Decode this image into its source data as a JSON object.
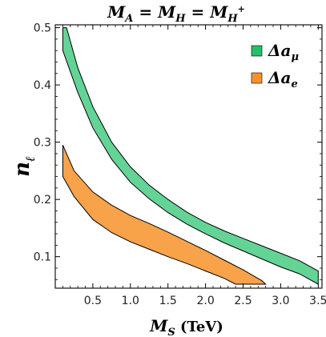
{
  "chart_data": {
    "type": "area",
    "title": {
      "main": "M",
      "a_sub": "A",
      "eq1": " = ",
      "h_main": "M",
      "h_sub": "H",
      "eq2": " = ",
      "hp_main": "M",
      "hp_sub": "H",
      "hp_sup": "+"
    },
    "xlabel": {
      "main": "M",
      "sub": "S",
      "unit": " (TeV)"
    },
    "ylabel": {
      "main": "n",
      "sub": "ℓ"
    },
    "xlim": [
      0,
      3.55
    ],
    "ylim": [
      0.045,
      0.505
    ],
    "x_ticks": [
      0.5,
      1.0,
      1.5,
      2.0,
      2.5,
      3.0,
      3.5
    ],
    "x_tick_labels": [
      "0.5",
      "1.0",
      "1.5",
      "2.0",
      "2.5",
      "3.0",
      "3.5"
    ],
    "y_ticks": [
      0.1,
      0.2,
      0.3,
      0.4,
      0.5
    ],
    "y_tick_labels": [
      "0.1",
      "0.2",
      "0.3",
      "0.4",
      "0.5"
    ],
    "legend_position": "top-right",
    "series": [
      {
        "name": "Δa",
        "name_sub": "μ",
        "color": "#22c06a",
        "upper": {
          "x": [
            0.1,
            0.15,
            0.3,
            0.5,
            0.75,
            1.0,
            1.25,
            1.5,
            1.75,
            2.0,
            2.25,
            2.5,
            2.75,
            3.0,
            3.25,
            3.5
          ],
          "y": [
            0.5,
            0.5,
            0.43,
            0.362,
            0.3,
            0.257,
            0.225,
            0.2,
            0.178,
            0.16,
            0.145,
            0.132,
            0.119,
            0.106,
            0.093,
            0.075
          ]
        },
        "lower": {
          "x": [
            0.1,
            0.3,
            0.5,
            0.75,
            1.0,
            1.25,
            1.5,
            1.75,
            2.0,
            2.25,
            2.5,
            2.75,
            3.0,
            3.25,
            3.5
          ],
          "y": [
            0.46,
            0.387,
            0.325,
            0.27,
            0.23,
            0.201,
            0.177,
            0.157,
            0.14,
            0.124,
            0.11,
            0.096,
            0.082,
            0.07,
            0.052
          ]
        }
      },
      {
        "name": "Δa",
        "name_sub": "e",
        "color": "#f7922a",
        "upper": {
          "x": [
            0.1,
            0.25,
            0.5,
            0.75,
            1.0,
            1.25,
            1.5,
            1.75,
            2.0,
            2.25,
            2.5,
            2.75,
            2.8
          ],
          "y": [
            0.295,
            0.25,
            0.213,
            0.19,
            0.172,
            0.158,
            0.143,
            0.127,
            0.111,
            0.094,
            0.077,
            0.058,
            0.052
          ]
        },
        "lower": {
          "x": [
            0.1,
            0.25,
            0.5,
            0.75,
            1.0,
            1.25,
            1.5,
            1.75,
            2.0,
            2.25,
            2.4
          ],
          "y": [
            0.24,
            0.205,
            0.165,
            0.142,
            0.126,
            0.113,
            0.1,
            0.088,
            0.075,
            0.062,
            0.052
          ]
        }
      }
    ]
  }
}
